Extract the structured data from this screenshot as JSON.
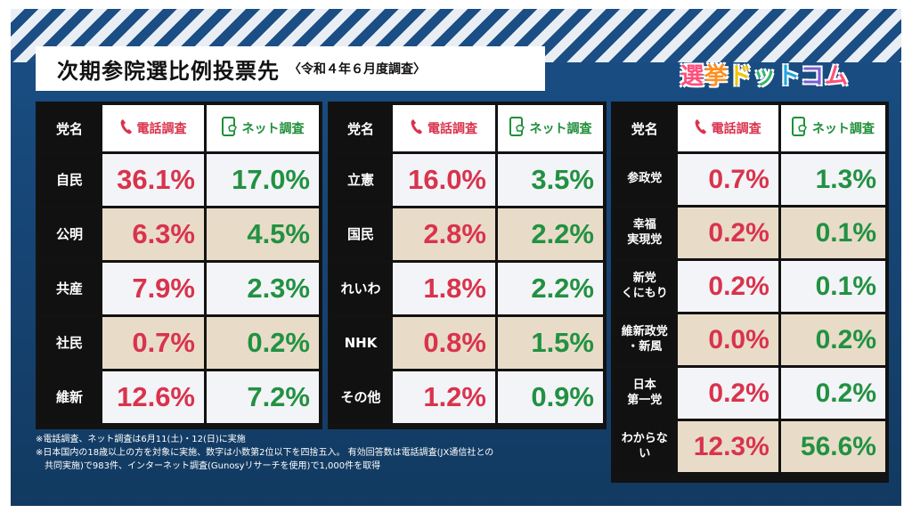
{
  "title": "次期参院選比例投票先",
  "subtitle": "〈令和４年６月度調査〉",
  "logo": [
    "選",
    "挙",
    "ド",
    "ッ",
    "ト",
    "コ",
    "ム"
  ],
  "headers": {
    "party": "党名",
    "phone": "電話調査",
    "net": "ネット調査"
  },
  "icons": {
    "phone": "phone-icon",
    "net": "smartphone-icon"
  },
  "colors": {
    "phone": "#d9334d",
    "net": "#229142",
    "background": "#15426f",
    "row_light": "#f3f4f7",
    "row_tan": "#e8dcc8"
  },
  "chart_data": {
    "type": "table",
    "title": "次期参院選比例投票先",
    "columns": [
      "党名",
      "電話調査",
      "ネット調査"
    ],
    "panels": [
      {
        "rows": [
          {
            "party": "自民",
            "phone": "36.1%",
            "net": "17.0%"
          },
          {
            "party": "公明",
            "phone": "6.3%",
            "net": "4.5%"
          },
          {
            "party": "共産",
            "phone": "7.9%",
            "net": "2.3%"
          },
          {
            "party": "社民",
            "phone": "0.7%",
            "net": "0.2%"
          },
          {
            "party": "維新",
            "phone": "12.6%",
            "net": "7.2%"
          }
        ]
      },
      {
        "rows": [
          {
            "party": "立憲",
            "phone": "16.0%",
            "net": "3.5%"
          },
          {
            "party": "国民",
            "phone": "2.8%",
            "net": "2.2%"
          },
          {
            "party": "れいわ",
            "phone": "1.8%",
            "net": "2.2%"
          },
          {
            "party": "NHK",
            "phone": "0.8%",
            "net": "1.5%"
          },
          {
            "party": "その他",
            "phone": "1.2%",
            "net": "0.9%"
          }
        ]
      },
      {
        "rows": [
          {
            "party": "参政党",
            "phone": "0.7%",
            "net": "1.3%"
          },
          {
            "party": "幸福\n実現党",
            "phone": "0.2%",
            "net": "0.1%"
          },
          {
            "party": "新党\nくにもり",
            "phone": "0.2%",
            "net": "0.1%"
          },
          {
            "party": "維新政党\n・新風",
            "phone": "0.0%",
            "net": "0.2%"
          },
          {
            "party": "日本\n第一党",
            "phone": "0.2%",
            "net": "0.2%"
          },
          {
            "party": "わからない",
            "phone": "12.3%",
            "net": "56.6%"
          }
        ]
      }
    ]
  },
  "notes": [
    "※電話調査、ネット調査は6月11(土)・12(日)に実施",
    "※日本国内の18歳以上の方を対象に実施、数字は小数第2位以下を四捨五入。 有効回答数は電話調査(JX通信社との",
    "共同実施)で983件、インターネット調査(Gunosyリサーチを使用)で1,000件を取得"
  ]
}
